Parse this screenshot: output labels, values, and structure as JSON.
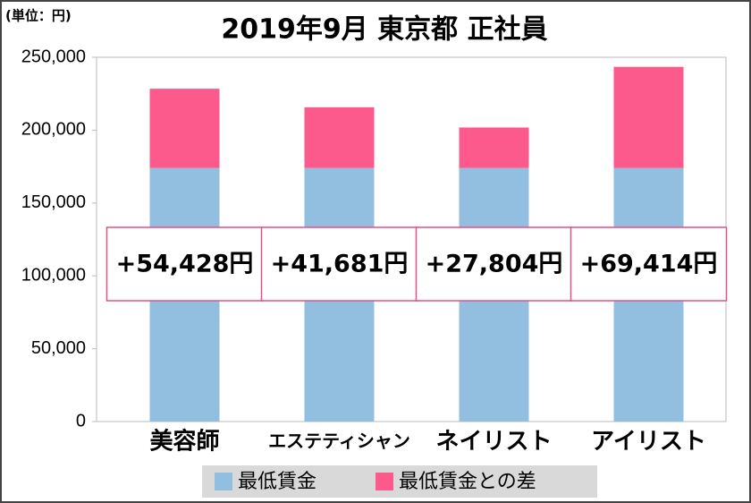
{
  "chart_data": {
    "type": "stacked-bar",
    "title": "2019年9月 東京都 正社員",
    "unit_label": "(単位：円)",
    "categories": [
      "美容師",
      "エステティシャン",
      "ネイリスト",
      "アイリスト"
    ],
    "series": [
      {
        "name": "最低賃金",
        "color": "#92bfe0",
        "values": [
          174000,
          174000,
          174000,
          174000
        ]
      },
      {
        "name": "最低賃金との差",
        "color": "#fc5a8d",
        "values": [
          54428,
          41681,
          27804,
          69414
        ],
        "value_labels": [
          "+54,428円",
          "+41,681円",
          "+27,804円",
          "+69,414円"
        ]
      }
    ],
    "ylim": [
      0,
      250000
    ],
    "yticks": [
      0,
      {
        "value": 50000,
        "label": "50,000"
      },
      {
        "value": 100000,
        "label": "100,000"
      },
      {
        "value": 150000,
        "label": "150,000"
      },
      {
        "value": 200000,
        "label": "200,000"
      },
      {
        "value": 250000,
        "label": "250,000"
      }
    ]
  }
}
